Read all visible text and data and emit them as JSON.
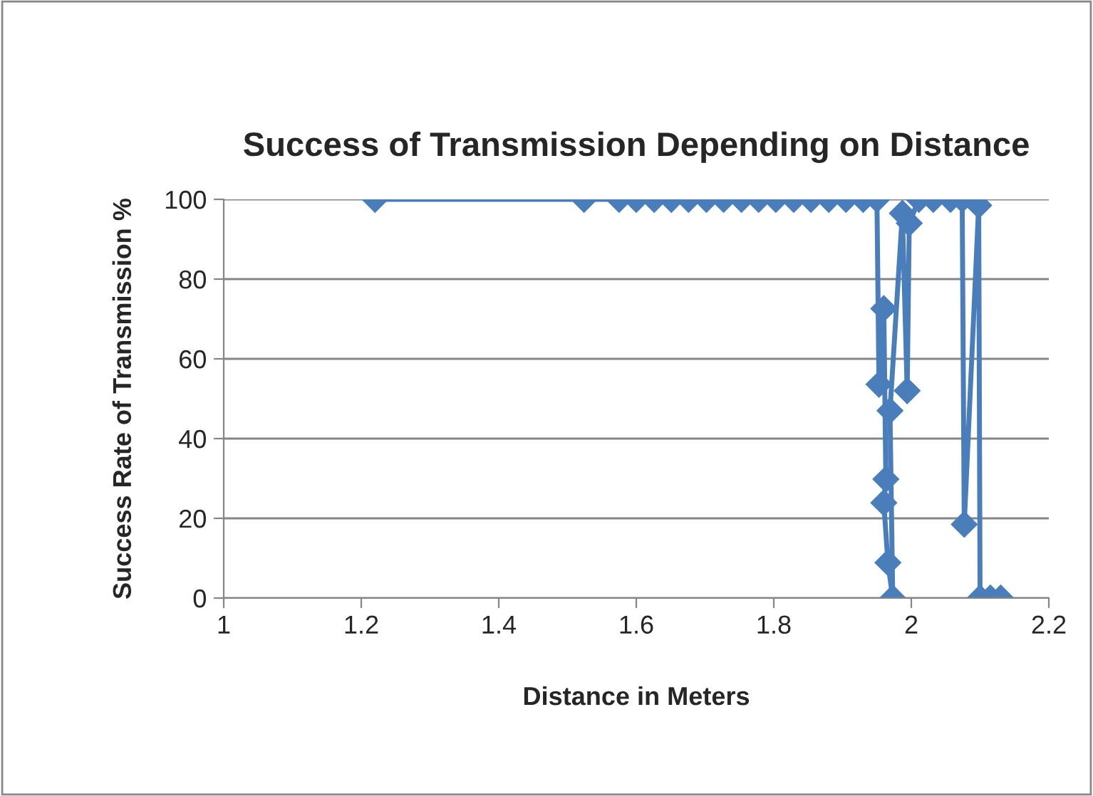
{
  "chart_data": {
    "type": "line",
    "title": "Success of Transmission Depending on Distance",
    "xlabel": "Distance in Meters",
    "ylabel": "Success Rate of Transmission %",
    "x": [
      1.22,
      1.524,
      1.575,
      1.6,
      1.626,
      1.651,
      1.676,
      1.702,
      1.727,
      1.753,
      1.778,
      1.803,
      1.829,
      1.854,
      1.88,
      1.905,
      1.93,
      1.95,
      1.953,
      1.96,
      1.963,
      1.96,
      1.966,
      1.973,
      1.969,
      1.987,
      1.994,
      1.997,
      2.011,
      2.032,
      2.057,
      2.074,
      2.077,
      2.098,
      2.1,
      2.115,
      2.13
    ],
    "series": [
      {
        "color": "#4a7ebb",
        "values": [
          100,
          100,
          100,
          100,
          100,
          100,
          100,
          100,
          100,
          100,
          100,
          100,
          100,
          100,
          100,
          100,
          100,
          100,
          53.6,
          72.6,
          29.8,
          23.9,
          8.9,
          0,
          47,
          96.5,
          52,
          94,
          100,
          100,
          100,
          100,
          18.5,
          98.5,
          0,
          0,
          0
        ]
      }
    ],
    "xlim": [
      1,
      2.2
    ],
    "xticks": [
      {
        "value": 1,
        "label": "1"
      },
      1.2,
      1.4,
      1.6,
      1.8,
      {
        "value": 2,
        "label": "2"
      },
      2.2
    ],
    "ylim": [
      0,
      100
    ],
    "yticks": [
      0,
      20,
      40,
      60,
      80,
      100
    ],
    "grid": "y",
    "marker": "diamond",
    "line_style": "solid",
    "legend": false
  }
}
